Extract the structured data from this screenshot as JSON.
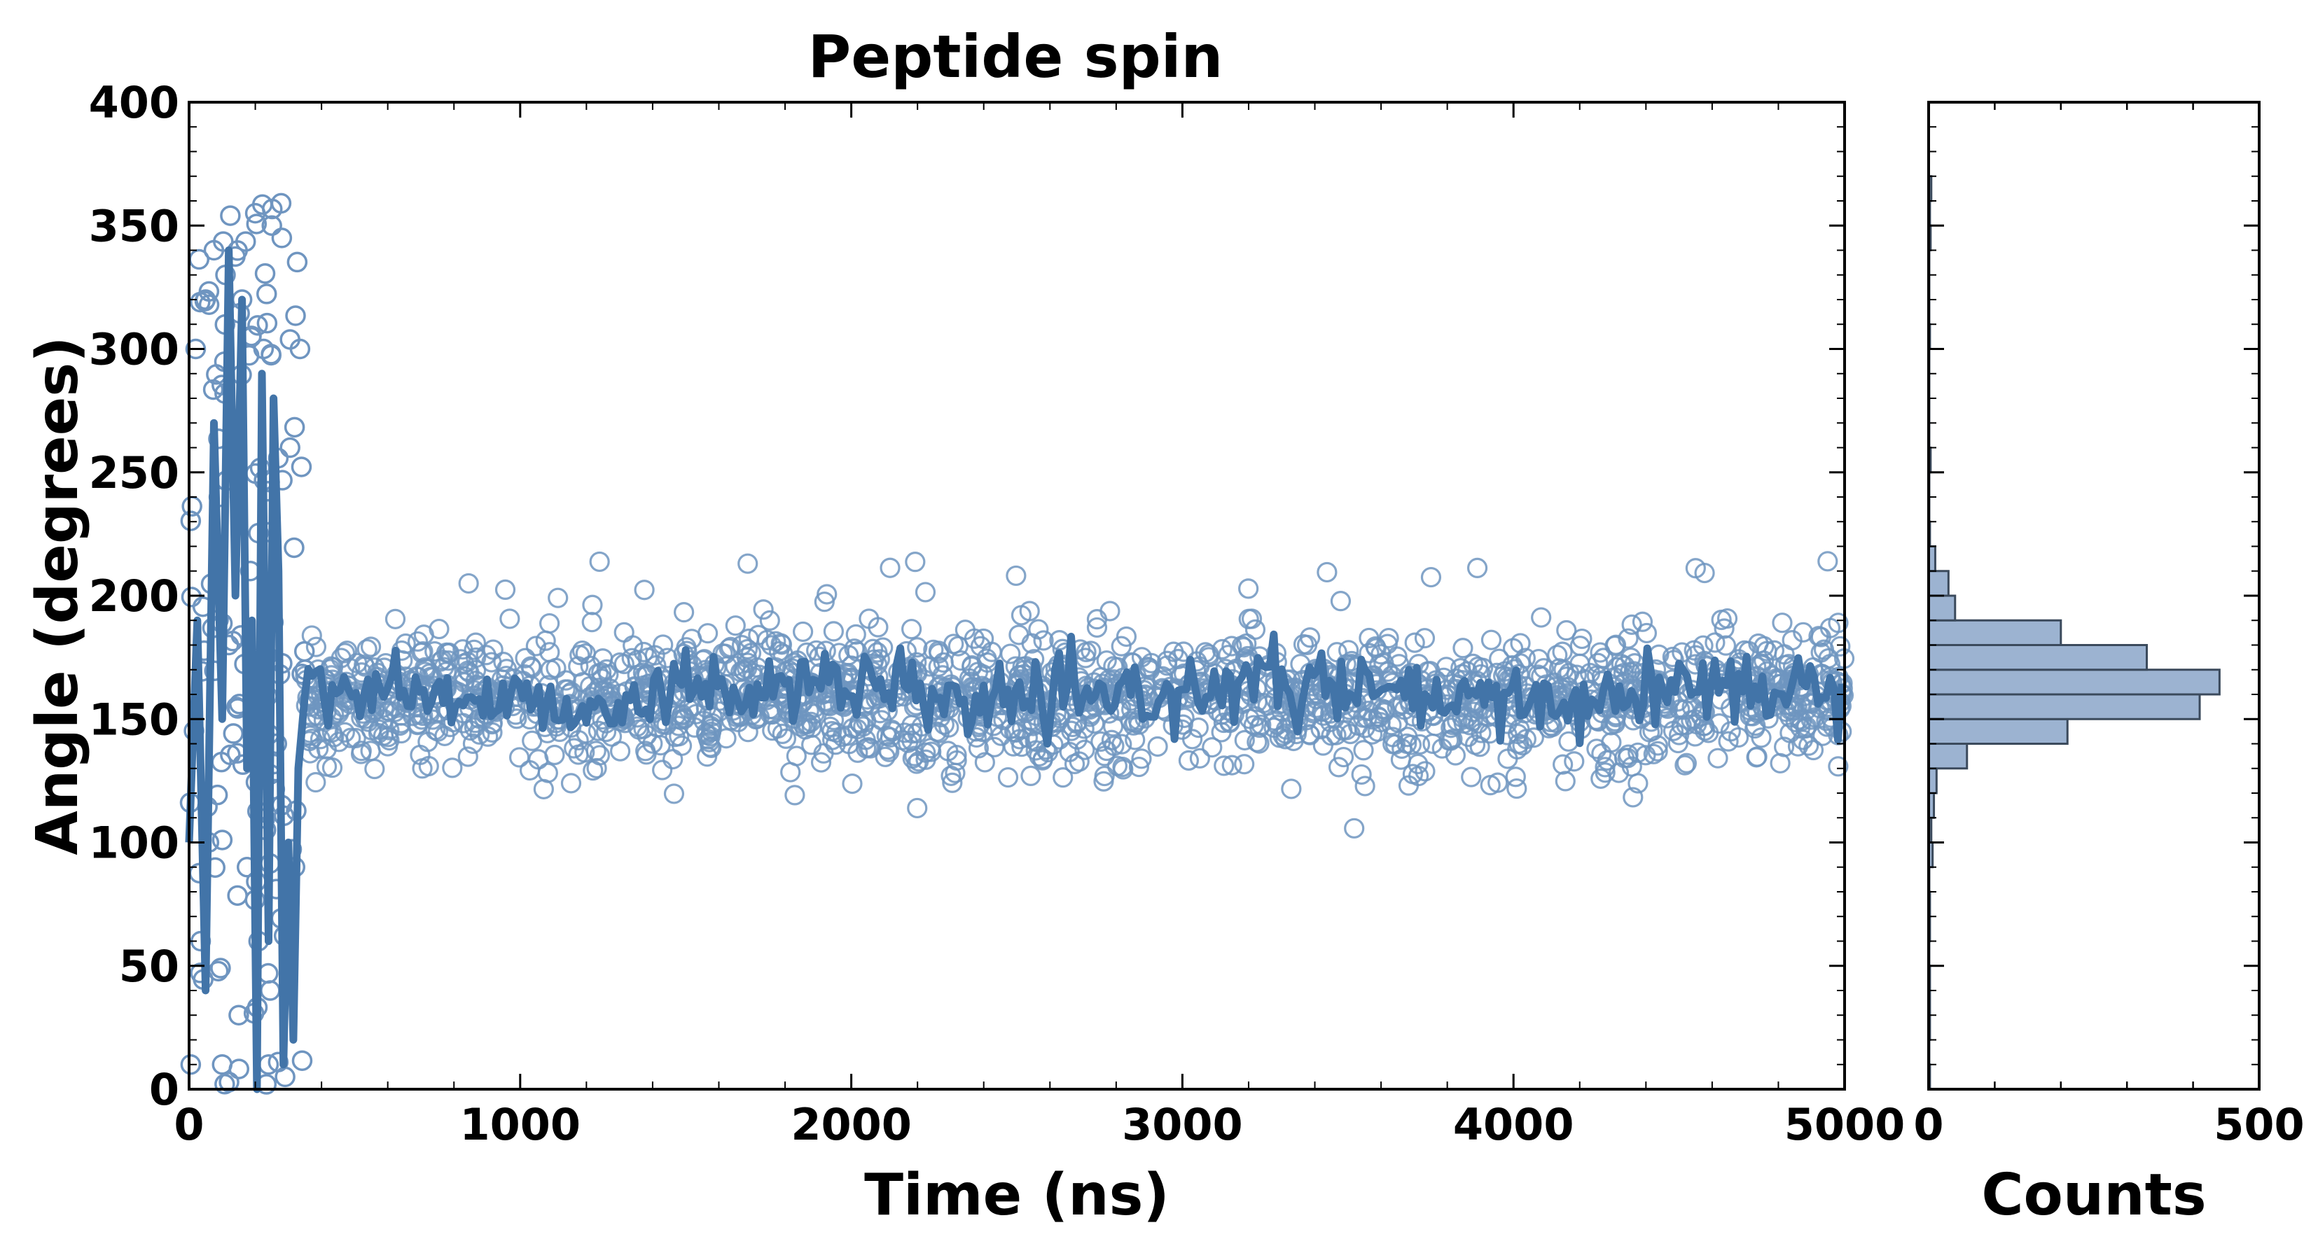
{
  "chart_data": [
    {
      "type": "scatter",
      "title": "Peptide spin",
      "xlabel": "Time (ns)",
      "ylabel": "Angle (degrees)",
      "xlim": [
        0,
        5000
      ],
      "ylim": [
        0,
        400
      ],
      "x_ticks": [
        "0",
        "1000",
        "2000",
        "3000",
        "4000",
        "5000"
      ],
      "y_ticks": [
        "0",
        "50",
        "100",
        "150",
        "200",
        "250",
        "300",
        "350",
        "400"
      ],
      "grid": false,
      "colors": {
        "points": "#6f95c0",
        "line": "#4274a8"
      },
      "series": [
        {
          "type": "scatter",
          "marker": "open-circle",
          "description_of_region_1": "0–350 ns: widely scattered angles spanning 0–360",
          "x": [
            5,
            20,
            35,
            50,
            60,
            75,
            90,
            100,
            110,
            120,
            135,
            150,
            160,
            175,
            185,
            200,
            210,
            225,
            240,
            250,
            265,
            280,
            290,
            305,
            320,
            335,
            350
          ],
          "y": [
            10,
            300,
            60,
            320,
            100,
            340,
            240,
            10,
            330,
            180,
            260,
            30,
            320,
            90,
            210,
            355,
            60,
            300,
            10,
            350,
            140,
            345,
            5,
            260,
            90,
            300,
            170
          ],
          "steady_state": {
            "x_range": [
              350,
              5000
            ],
            "mean": 158,
            "spread": [
              120,
              220
            ]
          }
        },
        {
          "type": "line",
          "description": "running average",
          "x": [
            0,
            25,
            50,
            75,
            100,
            120,
            140,
            160,
            175,
            190,
            205,
            220,
            240,
            255,
            270,
            285,
            300,
            315,
            330,
            350,
            400,
            500,
            750,
            1000,
            1500,
            2000,
            2500,
            3000,
            3500,
            4000,
            4500,
            5000
          ],
          "y": [
            100,
            190,
            40,
            270,
            150,
            340,
            200,
            320,
            130,
            190,
            0,
            290,
            60,
            280,
            210,
            10,
            100,
            20,
            130,
            160,
            155,
            165,
            180,
            160,
            165,
            158,
            180,
            160,
            155,
            150,
            160,
            165
          ]
        }
      ]
    },
    {
      "type": "bar",
      "orientation": "horizontal",
      "xlabel": "Counts",
      "xlim": [
        0,
        500
      ],
      "ylim": [
        0,
        400
      ],
      "x_ticks": [
        "0",
        "500"
      ],
      "colors": {
        "bars": "#9cb3d1",
        "edge": "#3b4a5c"
      },
      "bin_width": 10,
      "bins": [
        0,
        10,
        20,
        30,
        40,
        50,
        60,
        70,
        80,
        90,
        100,
        110,
        120,
        130,
        140,
        150,
        160,
        170,
        180,
        190,
        200,
        210,
        220,
        230,
        240,
        250,
        260,
        270,
        280,
        290,
        300,
        310,
        320,
        330,
        340,
        350,
        360,
        370,
        380,
        390
      ],
      "values": [
        2,
        1,
        2,
        2,
        2,
        1,
        2,
        2,
        1,
        6,
        4,
        8,
        12,
        58,
        210,
        410,
        440,
        330,
        200,
        40,
        30,
        10,
        2,
        1,
        1,
        3,
        1,
        1,
        1,
        1,
        2,
        1,
        1,
        1,
        3,
        2,
        4,
        0,
        0,
        0
      ]
    }
  ]
}
